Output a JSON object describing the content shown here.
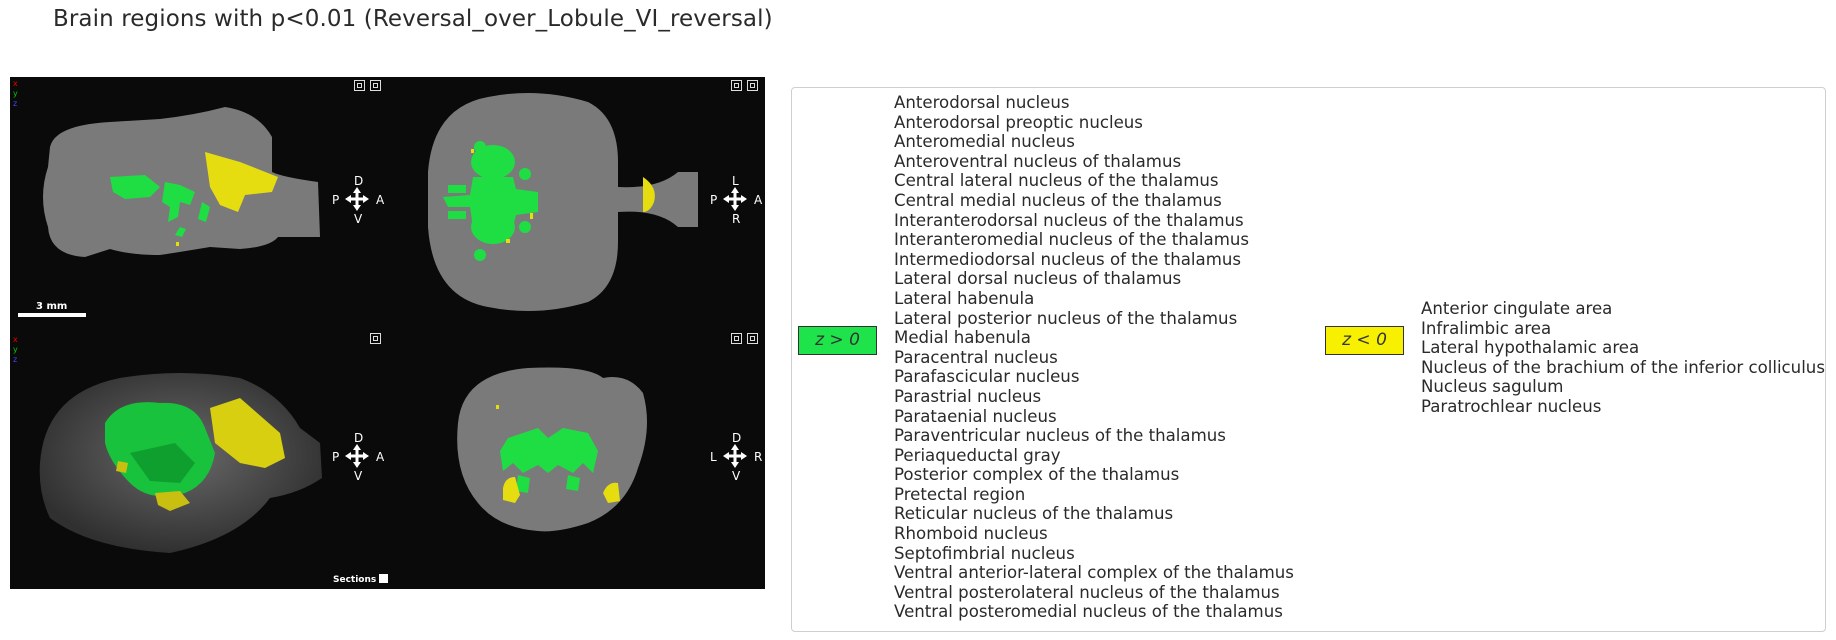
{
  "title": "Brain regions with p<0.01 (Reversal_over_Lobule_VI_reversal)",
  "viewer": {
    "axes": [
      "x",
      "y",
      "z"
    ],
    "scale_bar_label": "3 mm",
    "sections_label": "Sections",
    "views": [
      {
        "name": "sagittal",
        "top": "D",
        "bottom": "V",
        "left": "P",
        "right": "A"
      },
      {
        "name": "axial",
        "top": "L",
        "bottom": "R",
        "left": "P",
        "right": "A"
      },
      {
        "name": "3d",
        "top": "D",
        "bottom": "V",
        "left": "P",
        "right": "A"
      },
      {
        "name": "coronal",
        "top": "D",
        "bottom": "V",
        "left": "L",
        "right": "R"
      }
    ]
  },
  "legend": {
    "positive": {
      "label": "z > 0",
      "color": "#1ee34a"
    },
    "negative": {
      "label": "z < 0",
      "color": "#f7f000"
    }
  },
  "regions_positive": [
    "Anterodorsal nucleus",
    "Anterodorsal preoptic nucleus",
    "Anteromedial nucleus",
    "Anteroventral nucleus of thalamus",
    "Central lateral nucleus of the thalamus",
    "Central medial nucleus of the thalamus",
    "Interanterodorsal nucleus of the thalamus",
    "Interanteromedial nucleus of the thalamus",
    "Intermediodorsal nucleus of the thalamus",
    "Lateral dorsal nucleus of thalamus",
    "Lateral habenula",
    "Lateral posterior nucleus of the thalamus",
    "Medial habenula",
    "Paracentral nucleus",
    "Parafascicular nucleus",
    "Parastrial nucleus",
    "Parataenial nucleus",
    "Paraventricular nucleus of the thalamus",
    "Periaqueductal gray",
    "Posterior complex of the thalamus",
    "Pretectal region",
    "Reticular nucleus of the thalamus",
    "Rhomboid nucleus",
    "Septofimbrial nucleus",
    "Ventral anterior-lateral complex of the thalamus",
    "Ventral posterolateral nucleus of the thalamus",
    "Ventral posteromedial nucleus of the thalamus"
  ],
  "regions_negative": [
    "Anterior cingulate area",
    "Infralimbic area",
    "Lateral hypothalamic area",
    "Nucleus of the brachium of the inferior colliculus",
    "Nucleus sagulum",
    "Paratrochlear nucleus"
  ]
}
